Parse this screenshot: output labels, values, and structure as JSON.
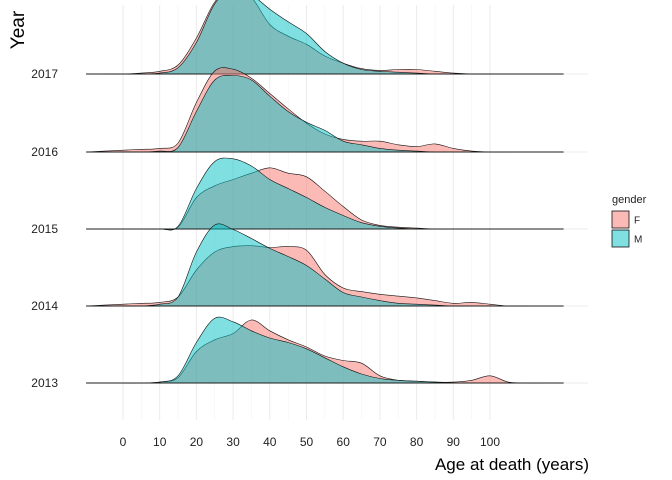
{
  "chart_data": {
    "type": "area",
    "subtype": "ridgeline-density",
    "title": "",
    "xlabel": "Age at death (years)",
    "ylabel": "Year",
    "xlim": [
      -10,
      122
    ],
    "xticks": [
      0,
      10,
      20,
      30,
      40,
      50,
      60,
      70,
      80,
      90,
      100
    ],
    "grid": true,
    "legend": {
      "title": "gender",
      "position": "right",
      "entries": [
        {
          "label": "F",
          "color": "#F8766D"
        },
        {
          "label": "M",
          "color": "#00BFC4"
        }
      ]
    },
    "colors": {
      "F": "#F8766D",
      "M": "#00BFC4",
      "overlap": "#7FBFBA"
    },
    "x": [
      -10,
      -5,
      0,
      5,
      10,
      15,
      20,
      25,
      30,
      35,
      40,
      45,
      50,
      55,
      60,
      65,
      70,
      75,
      80,
      85,
      90,
      95,
      100,
      105,
      110,
      115,
      120
    ],
    "rows": [
      {
        "year": "2013",
        "F": [
          0,
          0,
          0,
          0,
          0.01,
          0.06,
          0.35,
          0.48,
          0.55,
          0.7,
          0.58,
          0.48,
          0.4,
          0.3,
          0.25,
          0.22,
          0.08,
          0.03,
          0.02,
          0.01,
          0.01,
          0.03,
          0.08,
          0.01,
          0,
          0,
          0
        ],
        "M": [
          0,
          0,
          0,
          0,
          0.01,
          0.08,
          0.45,
          0.72,
          0.68,
          0.58,
          0.5,
          0.45,
          0.38,
          0.28,
          0.18,
          0.1,
          0.05,
          0.03,
          0.02,
          0.01,
          0,
          0,
          0,
          0,
          0,
          0,
          0
        ]
      },
      {
        "year": "2014",
        "F": [
          0,
          0.01,
          0.02,
          0.03,
          0.04,
          0.1,
          0.4,
          0.6,
          0.66,
          0.67,
          0.65,
          0.66,
          0.62,
          0.35,
          0.2,
          0.16,
          0.13,
          0.11,
          0.09,
          0.06,
          0.03,
          0.04,
          0.02,
          0,
          0,
          0,
          0
        ],
        "M": [
          0,
          0,
          0,
          0,
          0.02,
          0.1,
          0.6,
          0.9,
          0.85,
          0.75,
          0.64,
          0.55,
          0.45,
          0.3,
          0.15,
          0.1,
          0.06,
          0.03,
          0.02,
          0.01,
          0,
          0,
          0,
          0,
          0,
          0,
          0
        ]
      },
      {
        "year": "2015",
        "F": [
          0,
          0,
          0,
          0,
          0,
          0.02,
          0.35,
          0.48,
          0.55,
          0.62,
          0.68,
          0.62,
          0.58,
          0.42,
          0.25,
          0.1,
          0.04,
          0.02,
          0.01,
          0,
          0,
          0,
          0,
          0,
          0,
          0,
          0
        ],
        "M": [
          0,
          0,
          0,
          0,
          0,
          0.03,
          0.45,
          0.75,
          0.78,
          0.7,
          0.55,
          0.45,
          0.35,
          0.24,
          0.15,
          0.07,
          0.03,
          0.01,
          0,
          0,
          0,
          0,
          0,
          0,
          0,
          0,
          0
        ]
      },
      {
        "year": "2016",
        "F": [
          0,
          0.01,
          0.02,
          0.03,
          0.04,
          0.1,
          0.55,
          0.9,
          0.92,
          0.82,
          0.65,
          0.48,
          0.32,
          0.2,
          0.14,
          0.12,
          0.12,
          0.08,
          0.06,
          0.09,
          0.04,
          0.01,
          0,
          0,
          0,
          0,
          0
        ],
        "M": [
          0,
          0,
          0,
          0,
          0.01,
          0.05,
          0.45,
          0.8,
          0.85,
          0.8,
          0.62,
          0.45,
          0.33,
          0.24,
          0.12,
          0.08,
          0.04,
          0.02,
          0.01,
          0,
          0,
          0,
          0,
          0,
          0,
          0,
          0
        ]
      },
      {
        "year": "2017",
        "F": [
          0,
          0,
          0,
          0.01,
          0.03,
          0.1,
          0.4,
          0.8,
          0.95,
          0.85,
          0.55,
          0.42,
          0.33,
          0.2,
          0.12,
          0.06,
          0.04,
          0.05,
          0.05,
          0.03,
          0.01,
          0,
          0,
          0,
          0,
          0,
          0
        ],
        "M": [
          0,
          0,
          0,
          0,
          0.01,
          0.07,
          0.35,
          0.78,
          0.95,
          0.88,
          0.72,
          0.58,
          0.45,
          0.25,
          0.12,
          0.05,
          0.03,
          0.02,
          0.01,
          0,
          0,
          0,
          0,
          0,
          0,
          0,
          0
        ]
      }
    ]
  }
}
